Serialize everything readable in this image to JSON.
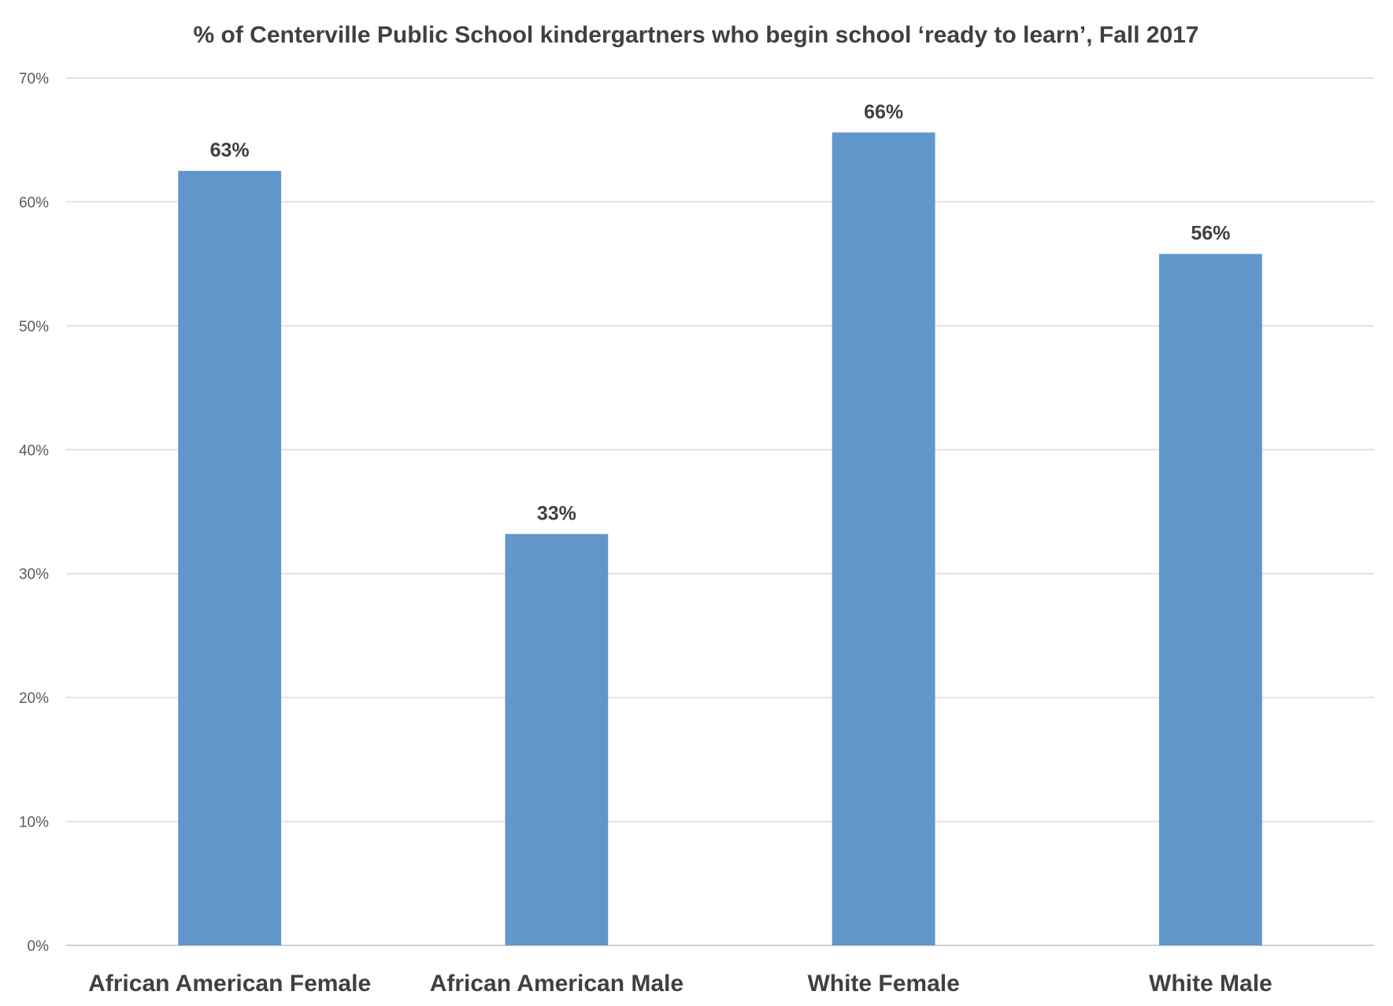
{
  "chart_data": {
    "type": "bar",
    "title": "% of Centerville Public School kindergartners who begin school ‘ready to learn’, Fall 2017",
    "xlabel": "",
    "ylabel": "",
    "categories": [
      "African American Female",
      "African American Male",
      "White Female",
      "White Male"
    ],
    "values": [
      62.5,
      33.2,
      65.6,
      55.8
    ],
    "value_labels": [
      "63%",
      "33%",
      "66%",
      "56%"
    ],
    "ylim": [
      0,
      70
    ],
    "yticks": [
      0,
      10,
      20,
      30,
      40,
      50,
      60,
      70
    ],
    "ytick_labels": [
      "0%",
      "10%",
      "20%",
      "30%",
      "40%",
      "50%",
      "60%",
      "70%"
    ],
    "grid": true,
    "legend": "none",
    "bar_color": "#6197CB"
  }
}
